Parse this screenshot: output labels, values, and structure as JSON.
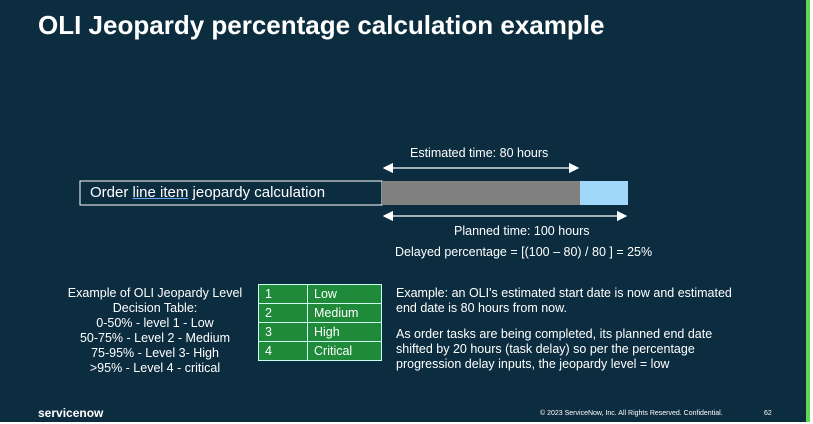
{
  "header": {
    "title": "OLI Jeopardy percentage calculation example"
  },
  "diagram": {
    "estimated_label": "Estimated time: 80 hours",
    "box_label": [
      "Order ",
      "line item",
      " jeopardy calculation"
    ],
    "planned_label": "Planned time: 100 hours",
    "formula": "Delayed percentage = [(100 – 80) / 80 ] = 25%"
  },
  "decision": {
    "heading": [
      "Example of OLI Jeopardy Level",
      "Decision Table:"
    ],
    "levels": [
      "0-50% - level 1 - Low",
      "50-75% - Level 2 - Medium",
      "75-95% - Level 3- High",
      ">95% - Level 4 - critical"
    ]
  },
  "table": {
    "rows": [
      [
        "1",
        "Low"
      ],
      [
        "2",
        "Medium"
      ],
      [
        "3",
        "High"
      ],
      [
        "4",
        "Critical"
      ]
    ]
  },
  "example": {
    "paragraphs": [
      "Example: an OLI's estimated start date is now and estimated end date is 80 hours from now.",
      "As order tasks are being completed, its planned end date shifted by 20 hours (task delay) so per the percentage progression delay inputs, the jeopardy level = low"
    ]
  },
  "footer": {
    "brand": "servicenow",
    "copyright": "© 2023 ServiceNow, Inc. All Rights Reserved. Confidential.",
    "page": "62"
  }
}
